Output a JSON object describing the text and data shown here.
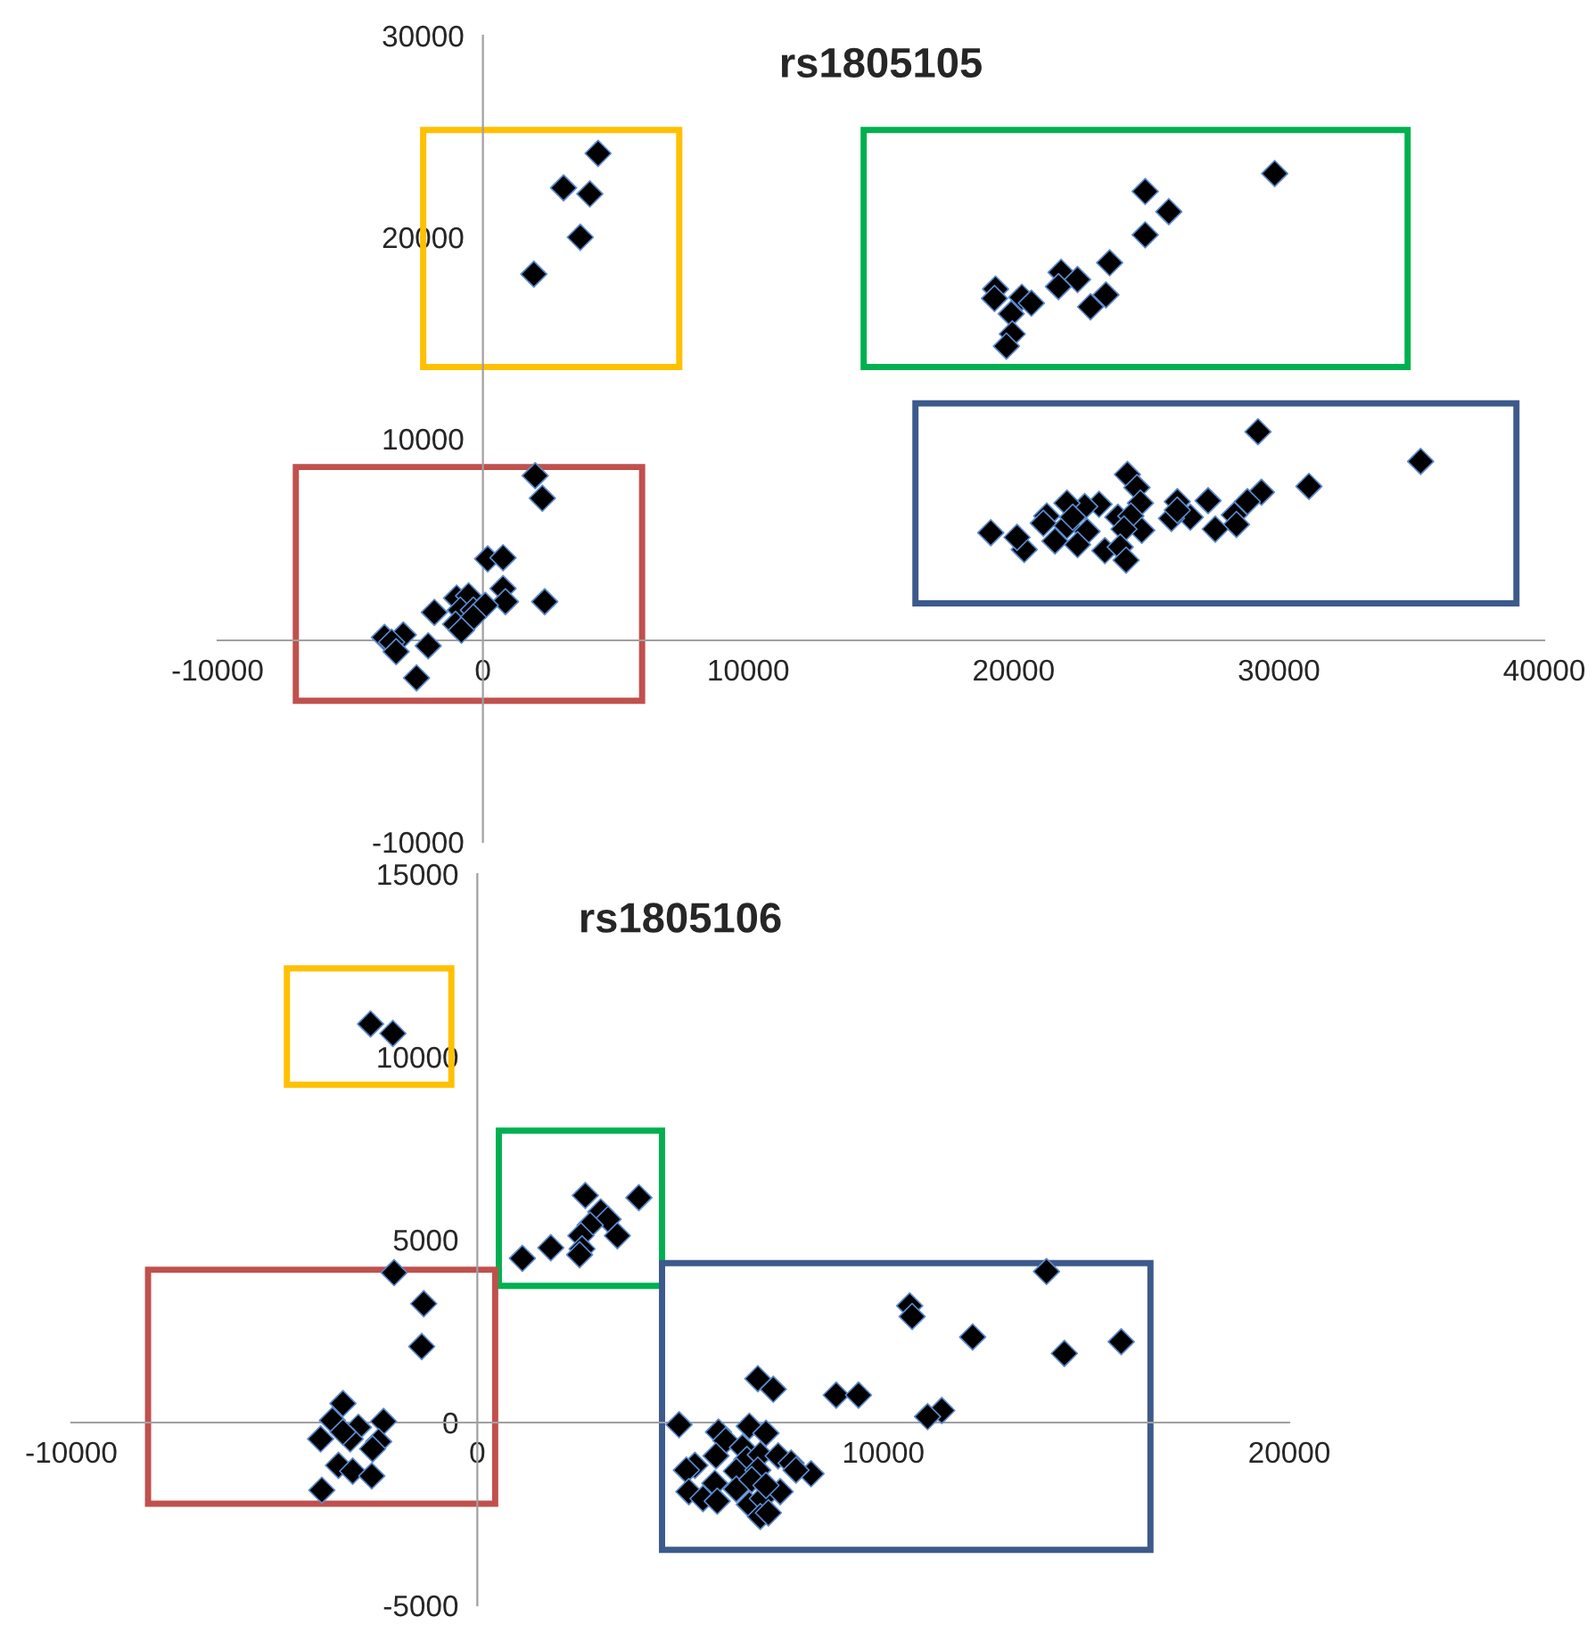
{
  "chart_data": [
    {
      "type": "scatter",
      "title": "rs1805105",
      "marker": "diamond",
      "grid": false,
      "legend": false,
      "xlim": [
        -10000,
        40000
      ],
      "xticks": [
        -10000,
        0,
        10000,
        20000,
        30000,
        40000
      ],
      "ylim": [
        -10000,
        30000
      ],
      "yticks": [
        -10000,
        {
          "value": 0,
          "label": null
        },
        10000,
        20000,
        30000
      ],
      "series": [
        {
          "color": "#000000",
          "x": [
            4340,
            3040,
            4030,
            3670,
            1920,
            1970,
            2240,
            180,
            760,
            760,
            850,
            2330,
            -990,
            -540,
            -850,
            -360,
            90,
            -1830,
            -1030,
            -360,
            -810,
            -2060,
            -3000,
            -3710,
            -3440,
            -3270,
            -2500,
            29840,
            24960,
            25850,
            24960,
            23620,
            21790,
            22410,
            21690,
            23480,
            22900,
            19320,
            19280,
            20310,
            20670,
            19910,
            19950,
            19730,
            29210,
            35340,
            31130,
            29340,
            28810,
            28320,
            28400,
            27600,
            27330,
            26660,
            26170,
            25950,
            26170,
            24290,
            24650,
            24780,
            23930,
            24420,
            24830,
            24160,
            23440,
            24020,
            24240,
            23220,
            22680,
            22010,
            21250,
            22010,
            22770,
            21560,
            22410,
            20400,
            20130,
            19140,
            21120,
            22230
          ],
          "values": [
            24160,
            22450,
            22150,
            20000,
            18170,
            8170,
            7050,
            4040,
            4100,
            2570,
            1920,
            1920,
            2100,
            2210,
            1500,
            1500,
            1740,
            1390,
            800,
            1150,
            500,
            -270,
            270,
            150,
            -90,
            -560,
            -1860,
            23160,
            22270,
            21270,
            20120,
            18730,
            18260,
            17900,
            17550,
            17140,
            16550,
            17430,
            16960,
            17020,
            16730,
            16200,
            15200,
            14600,
            10350,
            8880,
            7640,
            7350,
            6880,
            6220,
            5750,
            5520,
            6930,
            6110,
            6880,
            6050,
            6460,
            8230,
            7580,
            6810,
            6110,
            6170,
            5460,
            5520,
            4450,
            4630,
            3980,
            6750,
            6640,
            6810,
            6170,
            5690,
            5400,
            4930,
            4750,
            4510,
            5110,
            5340,
            5810,
            6110
          ]
        }
      ]
    },
    {
      "type": "scatter",
      "title": "rs1805106",
      "marker": "diamond",
      "grid": false,
      "legend": false,
      "xlim": [
        -10000,
        20000
      ],
      "xticks": [
        -10000,
        0,
        10000,
        20000
      ],
      "ylim": [
        -5000,
        15000
      ],
      "yticks": [
        -5000,
        0,
        5000,
        10000,
        15000
      ],
      "series": [
        {
          "color": "#000000",
          "x": [
            -2630,
            -2080,
            2660,
            3980,
            3040,
            3220,
            2780,
            3450,
            2550,
            2580,
            2520,
            1810,
            1110,
            -2050,
            -1320,
            -1370,
            -3310,
            -3570,
            -2310,
            -2930,
            -3860,
            -3130,
            -2430,
            -2580,
            -3420,
            -3070,
            -2600,
            -3830,
            -3310,
            14020,
            15860,
            14460,
            12200,
            10650,
            10710,
            11440,
            11090,
            8840,
            9390,
            6910,
            7290,
            4970,
            5940,
            6700,
            7110,
            6120,
            5360,
            5150,
            5880,
            6530,
            6640,
            6970,
            7410,
            7730,
            8220,
            7850,
            6380,
            6910,
            5850,
            6380,
            5210,
            5560,
            5910,
            6700,
            7020,
            7460,
            6970,
            7170,
            6760,
            7110
          ],
          "values": [
            10900,
            10640,
            6210,
            6150,
            5760,
            5560,
            5400,
            5110,
            5110,
            4750,
            4590,
            4780,
            4490,
            4100,
            3250,
            2080,
            520,
            60,
            30,
            -130,
            -450,
            -450,
            -520,
            -720,
            -1170,
            -1330,
            -1460,
            -1850,
            -260,
            4130,
            2210,
            1890,
            2340,
            3190,
            2900,
            330,
            160,
            750,
            750,
            1200,
            910,
            -60,
            -260,
            -100,
            -290,
            -490,
            -1170,
            -1300,
            -910,
            -680,
            -1010,
            -880,
            -910,
            -1110,
            -1400,
            -1300,
            -1330,
            -1300,
            -1660,
            -1820,
            -1890,
            -2080,
            -2150,
            -2240,
            -2080,
            -1890,
            -2570,
            -2470,
            -1560,
            -1720
          ]
        }
      ]
    }
  ]
}
